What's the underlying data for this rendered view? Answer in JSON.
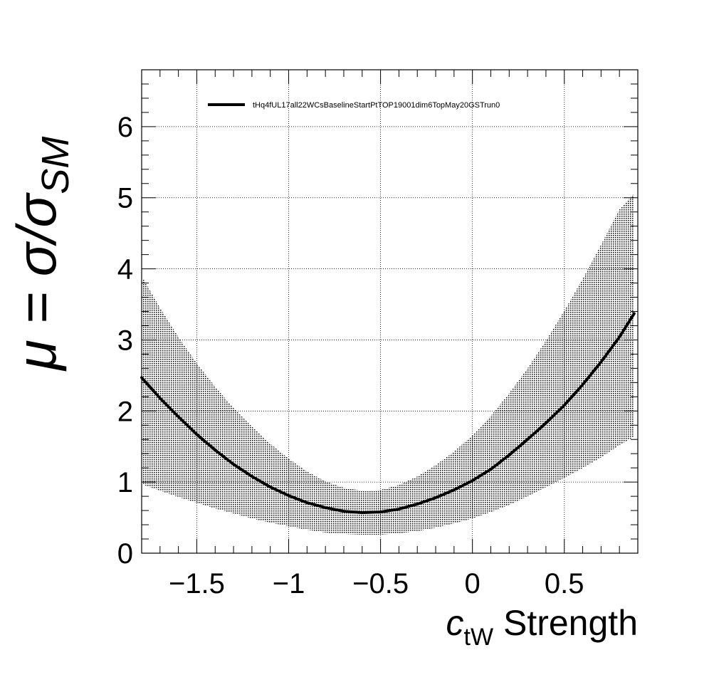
{
  "chart_data": {
    "type": "line",
    "x": [
      -1.8,
      -1.7,
      -1.6,
      -1.5,
      -1.4,
      -1.3,
      -1.2,
      -1.1,
      -1.0,
      -0.9,
      -0.8,
      -0.7,
      -0.6,
      -0.5,
      -0.4,
      -0.3,
      -0.2,
      -0.1,
      0.0,
      0.1,
      0.2,
      0.3,
      0.4,
      0.5,
      0.6,
      0.7,
      0.8,
      0.88
    ],
    "series": [
      {
        "name": "tHq4fUL17all22WCsBaselineStartPtTOP19001dim6TopMay20GSTrun0",
        "values": [
          2.47,
          2.18,
          1.92,
          1.67,
          1.45,
          1.25,
          1.08,
          0.93,
          0.81,
          0.71,
          0.64,
          0.59,
          0.57,
          0.58,
          0.62,
          0.69,
          0.78,
          0.89,
          1.02,
          1.18,
          1.38,
          1.6,
          1.83,
          2.08,
          2.37,
          2.69,
          3.04,
          3.37
        ]
      }
    ],
    "band": {
      "upper": [
        3.9,
        3.45,
        3.04,
        2.67,
        2.34,
        2.04,
        1.78,
        1.54,
        1.33,
        1.15,
        1.01,
        0.92,
        0.88,
        0.89,
        0.96,
        1.08,
        1.24,
        1.43,
        1.66,
        1.93,
        2.25,
        2.6,
        2.99,
        3.41,
        3.86,
        4.34,
        4.84,
        5.06
      ],
      "lower": [
        0.97,
        0.88,
        0.79,
        0.71,
        0.63,
        0.56,
        0.49,
        0.43,
        0.38,
        0.33,
        0.29,
        0.27,
        0.26,
        0.26,
        0.28,
        0.31,
        0.36,
        0.42,
        0.49,
        0.58,
        0.68,
        0.8,
        0.93,
        1.06,
        1.2,
        1.35,
        1.52,
        1.64
      ]
    },
    "xlim": [
      -1.8,
      0.9
    ],
    "ylim": [
      0,
      6.8
    ],
    "xticks": [
      -1.5,
      -1,
      -0.5,
      0,
      0.5
    ],
    "xtick_labels": [
      "−1.5",
      "−1",
      "−0.5",
      "0",
      "0.5"
    ],
    "yticks": [
      0,
      1,
      2,
      3,
      4,
      5,
      6
    ],
    "ytick_labels": [
      "0",
      "1",
      "2",
      "3",
      "4",
      "5",
      "6"
    ],
    "xlabel": {
      "symbol": "c",
      "subscript": "tW",
      "suffix": " Strength"
    },
    "ylabel": {
      "mu": "μ",
      "equals": " = σ/σ",
      "subscript": "SM"
    },
    "grid": true,
    "legend_position": "top-left",
    "colors": {
      "line": "#000000",
      "band": "#555555",
      "grid": "#000000"
    }
  }
}
